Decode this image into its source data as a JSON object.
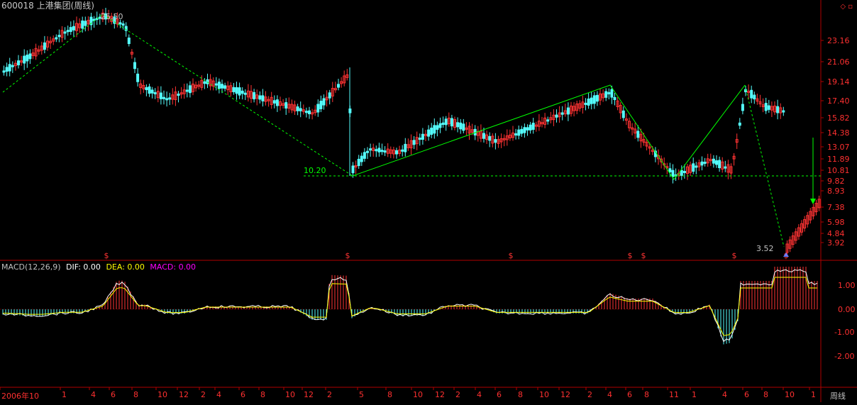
{
  "window": {
    "title": "600018 上港集团(周线)",
    "icons": [
      "diamond-icon",
      "restore-icon"
    ]
  },
  "price_panel": {
    "y_labels": [
      "23.16",
      "21.06",
      "19.14",
      "17.40",
      "15.82",
      "14.38",
      "13.07",
      "11.89",
      "10.81",
      "9.82",
      "8.93",
      "7.38",
      "5.98",
      "4.84",
      "3.92"
    ],
    "annotations": {
      "high": "25.50",
      "mid_low": "10.20",
      "low": "3.52"
    },
    "markers": [
      "$",
      "$",
      "$",
      "$",
      "$",
      "$",
      "$",
      "$"
    ]
  },
  "macd_panel": {
    "label": "MACD(12,26,9)",
    "dif_label": "DIF: 0.00",
    "dea_label": "DEA: 0.00",
    "macd_label": "MACD: 0.00",
    "y_labels": [
      "1.00",
      "0.00",
      "-1.00",
      "-2.00"
    ]
  },
  "x_axis": {
    "ticks": [
      "2006年10",
      "1",
      "4",
      "6",
      "8",
      "10",
      "12",
      "2",
      "4",
      "6",
      "8",
      "10",
      "12",
      "2",
      "5",
      "8",
      "10",
      "12",
      "2",
      "4",
      "6",
      "8",
      "10",
      "12",
      "2",
      "4",
      "6",
      "8",
      "11",
      "1",
      "4",
      "6",
      "8",
      "10",
      "1"
    ],
    "period": "周线"
  },
  "colors": {
    "up": "#ff3333",
    "down": "#54fcfc",
    "trend": "#00ff00",
    "frame": "#b00000",
    "dif": "#ffffff",
    "dea": "#ffff00",
    "axis_text": "#ff3030"
  }
}
